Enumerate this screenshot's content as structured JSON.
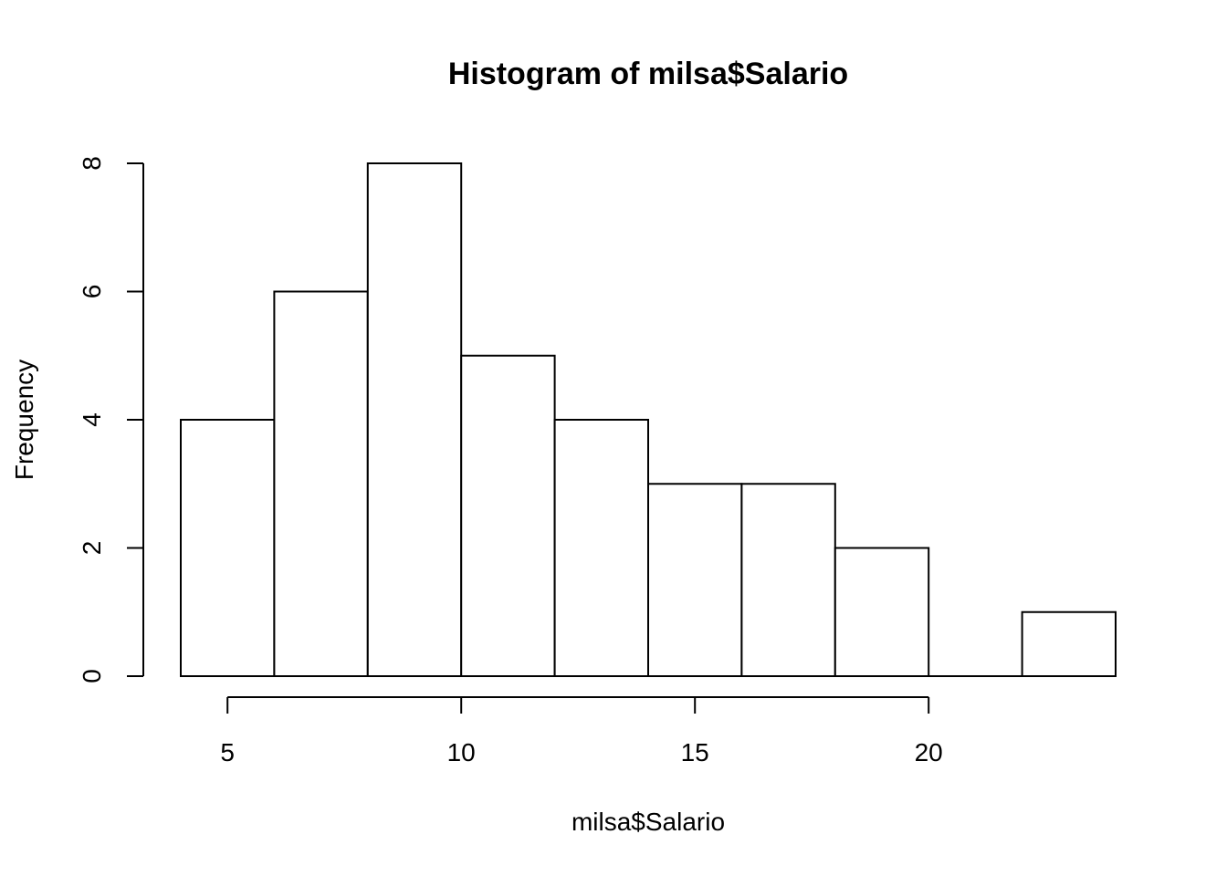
{
  "chart_data": {
    "type": "bar",
    "title": "Histogram of milsa$Salario",
    "xlabel": "milsa$Salario",
    "ylabel": "Frequency",
    "bins": [
      {
        "start": 4,
        "end": 6,
        "count": 4
      },
      {
        "start": 6,
        "end": 8,
        "count": 6
      },
      {
        "start": 8,
        "end": 10,
        "count": 8
      },
      {
        "start": 10,
        "end": 12,
        "count": 5
      },
      {
        "start": 12,
        "end": 14,
        "count": 4
      },
      {
        "start": 14,
        "end": 16,
        "count": 3
      },
      {
        "start": 16,
        "end": 18,
        "count": 3
      },
      {
        "start": 18,
        "end": 20,
        "count": 2
      },
      {
        "start": 20,
        "end": 22,
        "count": 0
      },
      {
        "start": 22,
        "end": 24,
        "count": 1
      }
    ],
    "x_ticks": [
      5,
      10,
      15,
      20
    ],
    "y_ticks": [
      0,
      2,
      4,
      6,
      8
    ],
    "xlim": [
      4,
      24
    ],
    "ylim": [
      0,
      8
    ],
    "grid": false,
    "bar_fill": "#ffffff",
    "bar_stroke": "#000000"
  }
}
